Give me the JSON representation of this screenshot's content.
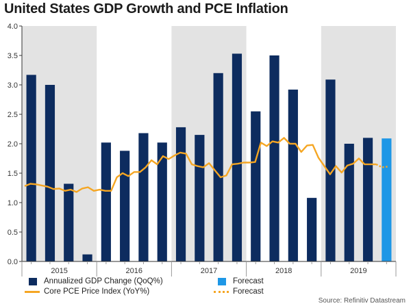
{
  "title": "United States GDP Growth and PCE Inflation",
  "source": "Source: Refinitiv Datastream",
  "colors": {
    "bar": "#0d2c5f",
    "forecast_bar": "#1e97e6",
    "line": "#f5a623",
    "shade": "#e3e3e3",
    "axis": "#333333"
  },
  "legend": {
    "gdp": "Annualized GDP Change (QoQ%)",
    "gdp_forecast": "Forecast",
    "pce": "Core PCE Price Index (YoY%)",
    "pce_forecast": "Forecast"
  },
  "chart_data": {
    "type": "bar+line",
    "title": "United States GDP Growth and PCE Inflation",
    "ylim": [
      0,
      4
    ],
    "yticks": [
      "0.0",
      "0.5",
      "1.0",
      "1.5",
      "2.0",
      "2.5",
      "3.0",
      "3.5",
      "4.0"
    ],
    "ytick_values": [
      0,
      0.5,
      1,
      1.5,
      2,
      2.5,
      3,
      3.5,
      4
    ],
    "years": [
      "2015",
      "2016",
      "2017",
      "2018",
      "2019"
    ],
    "shaded_years": [
      "2015",
      "2017",
      "2019"
    ],
    "quarters_per_year": 4,
    "series": [
      {
        "name": "Annualized GDP Change (QoQ%)",
        "kind": "bar",
        "values": [
          3.17,
          3.0,
          1.32,
          0.12,
          2.02,
          1.88,
          2.18,
          2.02,
          2.28,
          2.15,
          3.2,
          3.53,
          2.55,
          3.5,
          2.92,
          1.08,
          3.09,
          2.0,
          2.1
        ]
      },
      {
        "name": "Forecast",
        "kind": "bar",
        "quarter_index": 19,
        "values": [
          2.09
        ]
      },
      {
        "name": "Core PCE Price Index (YoY%)",
        "kind": "line",
        "values": [
          1.28,
          1.32,
          1.31,
          1.29,
          1.27,
          1.23,
          1.24,
          1.2,
          1.22,
          1.18,
          1.24,
          1.26,
          1.2,
          1.22,
          1.2,
          1.2,
          1.43,
          1.5,
          1.45,
          1.52,
          1.52,
          1.6,
          1.72,
          1.65,
          1.79,
          1.74,
          1.8,
          1.85,
          1.83,
          1.65,
          1.62,
          1.6,
          1.67,
          1.55,
          1.43,
          1.46,
          1.65,
          1.66,
          1.68,
          1.68,
          1.69,
          2.02,
          1.96,
          2.04,
          2.02,
          2.1,
          2.0,
          2.0,
          1.86,
          1.97,
          1.98,
          1.76,
          1.62,
          1.48,
          1.62,
          1.51,
          1.63,
          1.66,
          1.75,
          1.65,
          1.65,
          1.65
        ]
      },
      {
        "name": "Forecast",
        "kind": "line",
        "values": [
          1.65,
          1.6,
          1.61
        ]
      }
    ]
  }
}
